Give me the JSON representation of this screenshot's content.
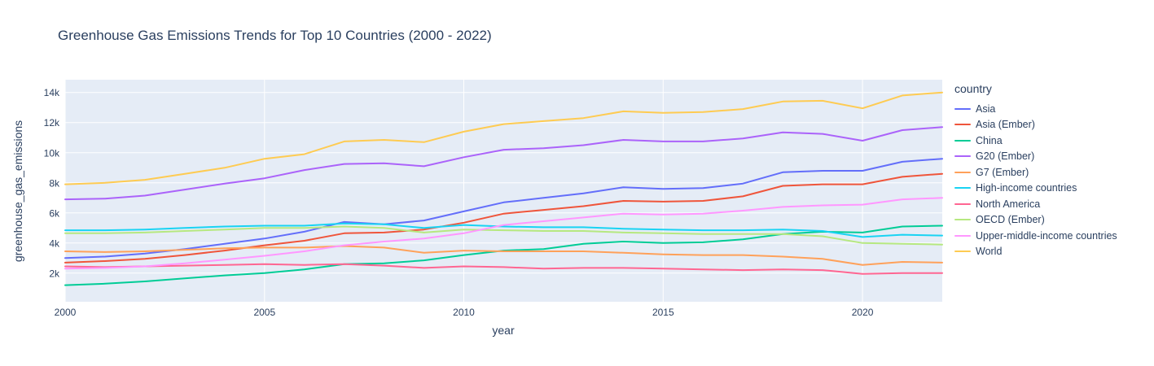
{
  "chart_data": {
    "type": "line",
    "title": "Greenhouse Gas Emissions Trends for Top 10 Countries (2000 - 2022)",
    "xlabel": "year",
    "ylabel": "greenhouse_gas_emissions",
    "legend_title": "country",
    "legend_position": "right",
    "grid": true,
    "plot_bg": "#e5ecf6",
    "grid_color": "#ffffff",
    "text_color": "#2a3f5f",
    "x_range": [
      2000,
      2022
    ],
    "y_range": [
      100,
      14850
    ],
    "x_ticks": {
      "values": [
        2000,
        2005,
        2010,
        2015,
        2020
      ],
      "labels": [
        "2000",
        "2005",
        "2010",
        "2015",
        "2020"
      ]
    },
    "y_ticks": {
      "values": [
        2000,
        4000,
        6000,
        8000,
        10000,
        12000,
        14000
      ],
      "labels": [
        "2k",
        "4k",
        "6k",
        "8k",
        "10k",
        "12k",
        "14k"
      ]
    },
    "x": [
      2000,
      2001,
      2002,
      2003,
      2004,
      2005,
      2006,
      2007,
      2008,
      2009,
      2010,
      2011,
      2012,
      2013,
      2014,
      2015,
      2016,
      2017,
      2018,
      2019,
      2020,
      2021,
      2022
    ],
    "series": [
      {
        "name": "Asia",
        "color": "#636efa",
        "values": [
          3000,
          3100,
          3300,
          3600,
          3950,
          4300,
          4750,
          5400,
          5250,
          5500,
          6100,
          6700,
          7000,
          7300,
          7700,
          7600,
          7650,
          7950,
          8700,
          8800,
          8800,
          9400,
          9600
        ]
      },
      {
        "name": "Asia (Ember)",
        "color": "#ef553b",
        "values": [
          2700,
          2800,
          2950,
          3200,
          3500,
          3850,
          4150,
          4650,
          4700,
          4900,
          5350,
          5950,
          6200,
          6450,
          6800,
          6750,
          6800,
          7100,
          7800,
          7900,
          7900,
          8400,
          8600
        ]
      },
      {
        "name": "China",
        "color": "#00cc96",
        "values": [
          1200,
          1300,
          1450,
          1650,
          1850,
          2000,
          2250,
          2600,
          2650,
          2850,
          3200,
          3500,
          3600,
          3950,
          4100,
          4000,
          4050,
          4250,
          4600,
          4750,
          4700,
          5100,
          5150
        ]
      },
      {
        "name": "G20 (Ember)",
        "color": "#ab63fa",
        "values": [
          6900,
          6950,
          7150,
          7550,
          7950,
          8300,
          8850,
          9250,
          9300,
          9100,
          9700,
          10200,
          10300,
          10500,
          10850,
          10750,
          10750,
          10950,
          11350,
          11250,
          10800,
          11500,
          11700
        ]
      },
      {
        "name": "G7 (Ember)",
        "color": "#ffa15a",
        "values": [
          3450,
          3400,
          3450,
          3550,
          3650,
          3700,
          3700,
          3800,
          3700,
          3350,
          3500,
          3450,
          3450,
          3450,
          3350,
          3250,
          3200,
          3200,
          3100,
          2950,
          2550,
          2750,
          2700
        ]
      },
      {
        "name": "High-income countries",
        "color": "#19d3f3",
        "values": [
          4850,
          4850,
          4900,
          5000,
          5100,
          5150,
          5150,
          5300,
          5250,
          5000,
          5200,
          5100,
          5050,
          5050,
          4950,
          4900,
          4850,
          4850,
          4900,
          4800,
          4400,
          4550,
          4500
        ]
      },
      {
        "name": "North America",
        "color": "#ff6692",
        "values": [
          2450,
          2400,
          2450,
          2500,
          2550,
          2600,
          2550,
          2600,
          2500,
          2350,
          2450,
          2400,
          2300,
          2350,
          2350,
          2300,
          2250,
          2200,
          2250,
          2200,
          1950,
          2000,
          2000
        ]
      },
      {
        "name": "OECD (Ember)",
        "color": "#b6e880",
        "values": [
          4650,
          4650,
          4700,
          4800,
          4900,
          5000,
          5000,
          5100,
          5000,
          4700,
          4900,
          4850,
          4800,
          4800,
          4700,
          4650,
          4600,
          4600,
          4600,
          4450,
          4000,
          3950,
          3900
        ]
      },
      {
        "name": "Upper-middle-income countries",
        "color": "#ff97ff",
        "values": [
          2300,
          2350,
          2450,
          2650,
          2900,
          3150,
          3450,
          3850,
          4100,
          4300,
          4650,
          5200,
          5450,
          5700,
          5950,
          5900,
          5950,
          6150,
          6400,
          6500,
          6550,
          6900,
          7000
        ]
      },
      {
        "name": "World",
        "color": "#fecb52",
        "values": [
          7900,
          8000,
          8200,
          8600,
          9000,
          9600,
          9900,
          10750,
          10850,
          10700,
          11400,
          11900,
          12100,
          12300,
          12750,
          12650,
          12700,
          12900,
          13400,
          13450,
          12950,
          13800,
          14000
        ]
      }
    ]
  }
}
